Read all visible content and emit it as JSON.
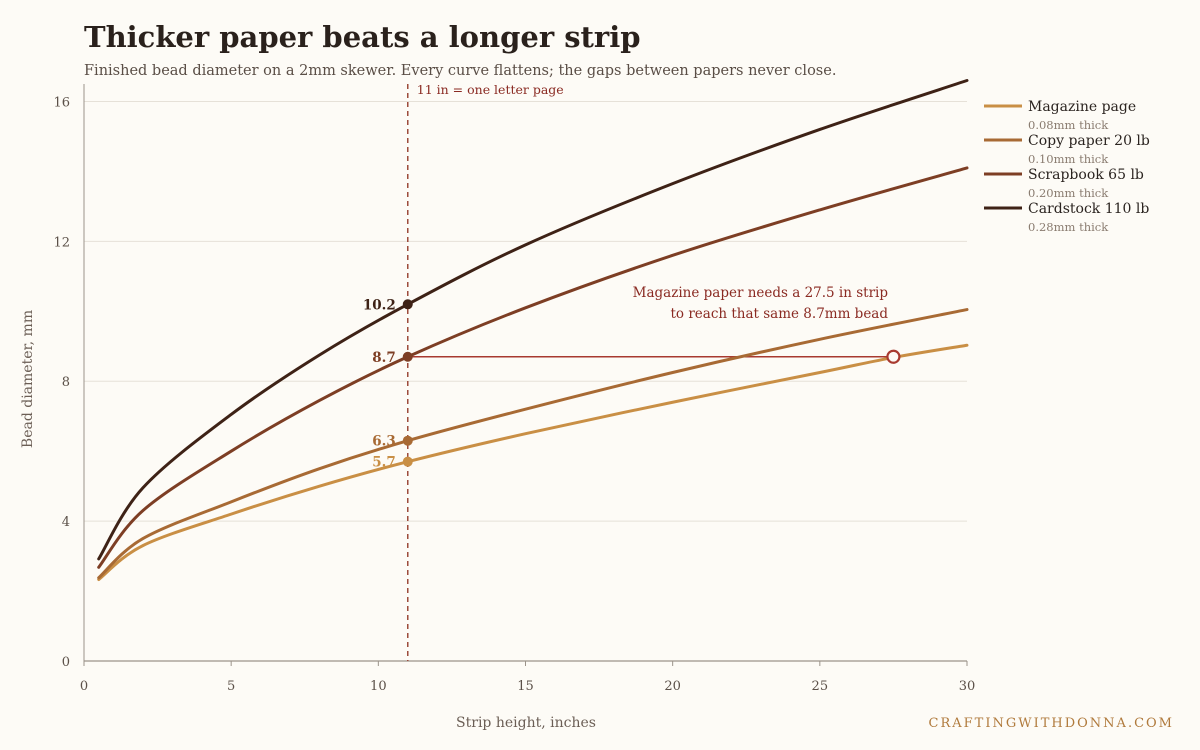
{
  "chart_data": {
    "type": "line",
    "title": "Thicker paper beats a longer strip",
    "subtitle": "Finished bead diameter on a 2mm skewer. Every curve flattens; the gaps between papers never close.",
    "xlabel": "Strip height, inches",
    "ylabel": "Bead diameter, mm",
    "xlim": [
      0,
      30
    ],
    "ylim": [
      0,
      16.5
    ],
    "xticks": [
      0,
      5,
      10,
      15,
      20,
      25,
      30
    ],
    "yticks": [
      0,
      4,
      8,
      12,
      16
    ],
    "grid": "horizontal",
    "legend_position": "top-right",
    "series": [
      {
        "name": "Magazine page",
        "thickness_label": "0.08mm thick",
        "color": "#c98f45",
        "points": [
          [
            0.5,
            2.33
          ],
          [
            2,
            3.3
          ],
          [
            5,
            4.2
          ],
          [
            8,
            5.0
          ],
          [
            11,
            5.7
          ],
          [
            15,
            6.5
          ],
          [
            20,
            7.4
          ],
          [
            25,
            8.25
          ],
          [
            27.5,
            8.68
          ],
          [
            30,
            9.03
          ]
        ]
      },
      {
        "name": "Copy paper 20 lb",
        "thickness_label": "0.10mm thick",
        "color": "#a86a34",
        "points": [
          [
            0.5,
            2.38
          ],
          [
            2,
            3.5
          ],
          [
            5,
            4.55
          ],
          [
            8,
            5.5
          ],
          [
            11,
            6.3
          ],
          [
            15,
            7.2
          ],
          [
            20,
            8.25
          ],
          [
            25,
            9.2
          ],
          [
            30,
            10.05
          ]
        ]
      },
      {
        "name": "Scrapbook 65 lb",
        "thickness_label": "0.20mm thick",
        "color": "#7d3e24",
        "points": [
          [
            0.5,
            2.68
          ],
          [
            2,
            4.3
          ],
          [
            5,
            6.0
          ],
          [
            8,
            7.45
          ],
          [
            11,
            8.7
          ],
          [
            15,
            10.1
          ],
          [
            20,
            11.6
          ],
          [
            25,
            12.9
          ],
          [
            30,
            14.1
          ]
        ]
      },
      {
        "name": "Cardstock 110 lb",
        "thickness_label": "0.28mm thick",
        "color": "#3e2216",
        "points": [
          [
            0.5,
            2.92
          ],
          [
            2,
            4.95
          ],
          [
            5,
            7.05
          ],
          [
            8,
            8.75
          ],
          [
            11,
            10.2
          ],
          [
            15,
            11.9
          ],
          [
            20,
            13.65
          ],
          [
            25,
            15.2
          ],
          [
            30,
            16.6
          ]
        ]
      }
    ],
    "reference_line": {
      "x": 11,
      "label": "11 in = one letter page",
      "color": "#9c4a3a"
    },
    "highlight_points": [
      {
        "x": 11,
        "y": 10.2,
        "label": "10.2",
        "color": "#3e2216"
      },
      {
        "x": 11,
        "y": 8.7,
        "label": "8.7",
        "color": "#7d3e24"
      },
      {
        "x": 11,
        "y": 6.3,
        "label": "6.3",
        "color": "#a86a34"
      },
      {
        "x": 11,
        "y": 5.7,
        "label": "5.7",
        "color": "#c98f45"
      }
    ],
    "comparison": {
      "y": 8.7,
      "x_from": 11,
      "x_to": 27.5,
      "color": "#a83a30",
      "annotation_lines": [
        "Magazine paper needs a 27.5 in strip",
        "to reach that same 8.7mm bead"
      ]
    }
  },
  "credit": "CRAFTINGWITHDONNA.COM",
  "colors": {
    "background": "#fdfbf6",
    "grid": "#e6e1d8",
    "axis": "#9b938a"
  }
}
